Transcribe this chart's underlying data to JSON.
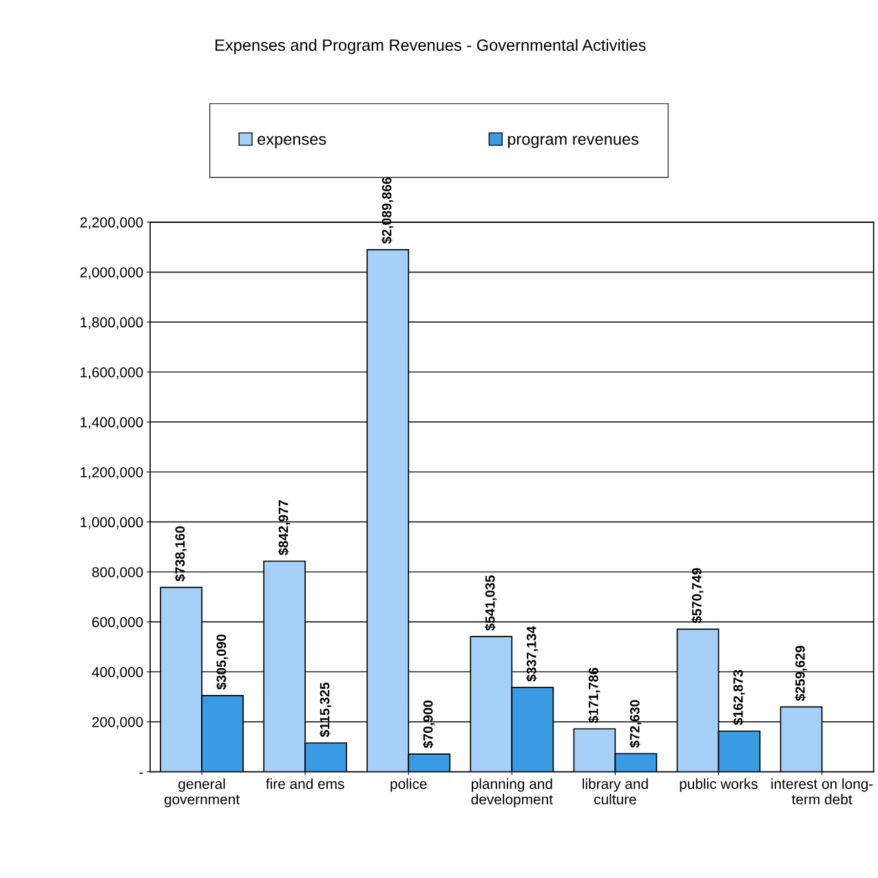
{
  "chart_data": {
    "type": "bar",
    "title": "Expenses and Program Revenues - Governmental Activities",
    "categories": [
      "general\ngovernment",
      "fire and ems",
      "police",
      "planning and\ndevelopment",
      "library and\nculture",
      "public works",
      "interest on long-\nterm debt"
    ],
    "series": [
      {
        "name": "expenses",
        "color": "#a6d0f7",
        "values": [
          738160,
          842977,
          2089866,
          541035,
          171786,
          570749,
          259629
        ],
        "value_labels": [
          "$738,160",
          "$842,977",
          "$2,089,866",
          "$541,035",
          "$171,786",
          "$570,749",
          "$259,629"
        ]
      },
      {
        "name": "program revenues",
        "color": "#3a9be3",
        "values": [
          305090,
          115325,
          70900,
          337134,
          72630,
          162873,
          null
        ],
        "value_labels": [
          "$305,090",
          "$115,325",
          "$70,900",
          "$337,134",
          "$72,630",
          "$162,873",
          null
        ]
      }
    ],
    "ylim": [
      0,
      2200000
    ],
    "yticks": [
      {
        "value": 0,
        "label": "-"
      },
      {
        "value": 200000,
        "label": "200,000"
      },
      {
        "value": 400000,
        "label": "400,000"
      },
      {
        "value": 600000,
        "label": "600,000"
      },
      {
        "value": 800000,
        "label": "800,000"
      },
      {
        "value": 1000000,
        "label": "1,000,000"
      },
      {
        "value": 1200000,
        "label": "1,200,000"
      },
      {
        "value": 1400000,
        "label": "1,400,000"
      },
      {
        "value": 1600000,
        "label": "1,600,000"
      },
      {
        "value": 1800000,
        "label": "1,800,000"
      },
      {
        "value": 2000000,
        "label": "2,000,000"
      },
      {
        "value": 2200000,
        "label": "2,200,000"
      }
    ],
    "grid": "y",
    "legend": "top"
  }
}
